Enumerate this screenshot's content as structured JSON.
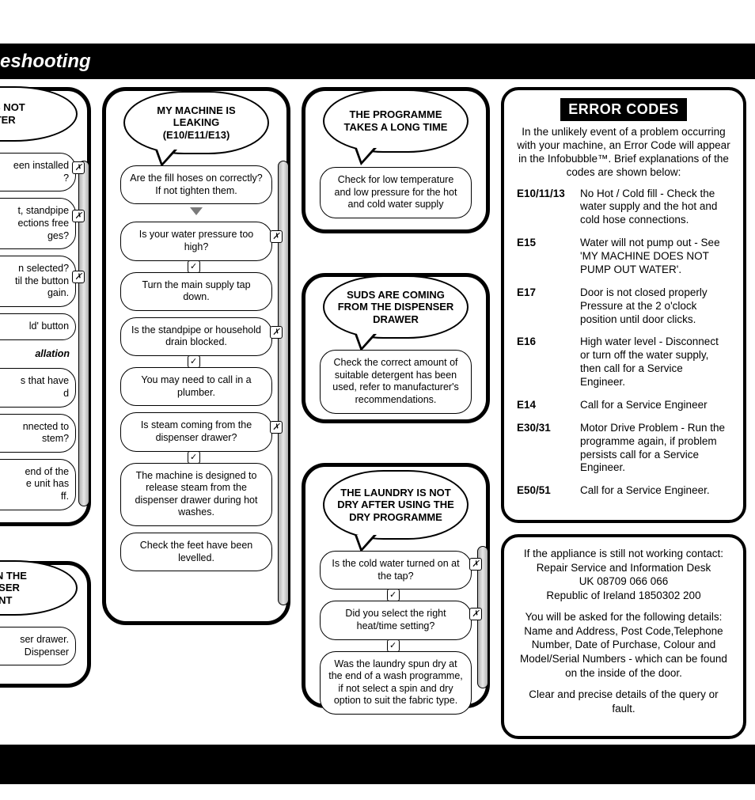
{
  "header": {
    "title": "eshooting"
  },
  "col0": {
    "card1": {
      "bubble": "OES NOT\nATER",
      "steps": [
        "een installed\n?",
        "t, standpipe\nections free\nges?",
        "n selected?\ntil the button\ngain.",
        "ld' button",
        "allation",
        "s that have\nd",
        "nnected to\nstem?",
        "end of the\ne unit has\nff."
      ]
    },
    "card2": {
      "bubble": "TS IN THE\nENSER\nENT",
      "steps": [
        "ser drawer.\nDispenser"
      ]
    }
  },
  "col1": {
    "bubble": "MY MACHINE IS LEAKING\n(E10/E11/E13)",
    "steps": [
      "Are the fill hoses on correctly? If not tighten them.",
      "Is your water pressure too high?",
      "Turn the main supply tap down.",
      "Is the standpipe or household drain blocked.",
      "You may need to call in a plumber.",
      "Is steam coming from the dispenser drawer?",
      "The machine is designed to release steam from the dispenser drawer during hot washes.",
      "Check the feet have been levelled."
    ]
  },
  "col2": {
    "card1": {
      "bubble": "THE PROGRAMME TAKES A LONG TIME",
      "steps": [
        "Check for low temperature and low pressure for the hot and cold water supply"
      ]
    },
    "card2": {
      "bubble": "SUDS ARE COMING FROM THE DISPENSER DRAWER",
      "steps": [
        "Check the correct amount of suitable detergent has been used, refer to manufacturer's recommendations."
      ]
    },
    "card3": {
      "bubble": "THE LAUNDRY IS NOT DRY AFTER USING THE DRY PROGRAMME",
      "steps": [
        "Is the cold water turned on at the tap?",
        "Did you select the right heat/time setting?",
        "Was the laundry spun dry at the end of a wash programme, if not select a spin and dry option to suit the fabric type."
      ]
    }
  },
  "error_panel": {
    "title": "ERROR CODES",
    "intro": "In the unlikely event of a problem occurring with your machine, an Error Code will appear in the Infobubble™. Brief explanations of the codes are shown below:",
    "codes": [
      {
        "k": "E10/11/13",
        "v": "No Hot / Cold fill - Check the water supply and the hot and cold hose connections."
      },
      {
        "k": "E15",
        "v": "Water will not pump out - See 'MY MACHINE DOES NOT PUMP OUT WATER'."
      },
      {
        "k": "E17",
        "v": "Door is not closed properly Pressure at the 2 o'clock position until door clicks."
      },
      {
        "k": "E16",
        "v": "High water level - Disconnect or turn off the water supply, then call for a Service Engineer."
      },
      {
        "k": "E14",
        "v": "Call for a Service Engineer"
      },
      {
        "k": "E30/31",
        "v": "Motor Drive Problem - Run the programme again, if problem persists call for a Service Engineer."
      },
      {
        "k": "E50/51",
        "v": "Call for a Service Engineer."
      }
    ]
  },
  "contact_panel": {
    "p1": "If the appliance is still not working contact:",
    "p2": "Repair Service and Information Desk",
    "p3": "UK 08709 066 066",
    "p4": "Republic of Ireland 1850302 200",
    "p5": "You will be asked for the following details: Name and Address, Post Code,Telephone Number, Date of Purchase, Colour and Model/Serial Numbers - which can be found on the inside of the door.",
    "p6": "Clear and precise details of the query or fault."
  },
  "glyphs": {
    "tick": "✓",
    "cross": "✗"
  }
}
